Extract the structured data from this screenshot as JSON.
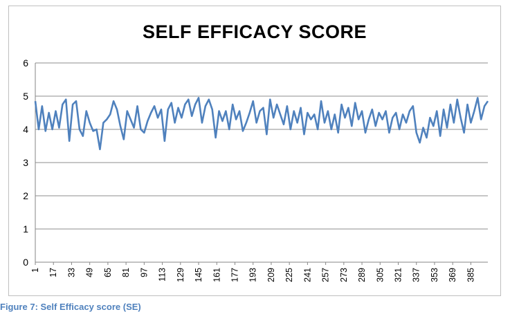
{
  "chart_data": {
    "type": "line",
    "title": "SELF EFFICACY SCORE",
    "ylim": [
      0,
      6
    ],
    "yticks": [
      0,
      1,
      2,
      3,
      4,
      5,
      6
    ],
    "x_range": [
      1,
      400
    ],
    "xticks": [
      1,
      17,
      33,
      49,
      65,
      81,
      97,
      113,
      129,
      145,
      161,
      177,
      193,
      209,
      225,
      241,
      257,
      273,
      289,
      305,
      321,
      337,
      353,
      369,
      385
    ],
    "grid": "horizontal",
    "legend": "none",
    "series_color": "#4f81bd",
    "series": [
      {
        "anchors": [
          [
            1,
            4.85
          ],
          [
            4,
            4.0
          ],
          [
            7,
            4.7
          ],
          [
            10,
            3.95
          ],
          [
            13,
            4.5
          ],
          [
            16,
            4.0
          ],
          [
            19,
            4.55
          ],
          [
            22,
            4.05
          ],
          [
            25,
            4.75
          ],
          [
            28,
            4.9
          ],
          [
            31,
            3.65
          ],
          [
            34,
            4.75
          ],
          [
            37,
            4.85
          ],
          [
            40,
            4.0
          ],
          [
            43,
            3.8
          ],
          [
            46,
            4.55
          ],
          [
            49,
            4.2
          ],
          [
            52,
            3.95
          ],
          [
            55,
            4.0
          ],
          [
            58,
            3.4
          ],
          [
            61,
            4.2
          ],
          [
            64,
            4.3
          ],
          [
            67,
            4.45
          ],
          [
            70,
            4.85
          ],
          [
            73,
            4.6
          ],
          [
            76,
            4.1
          ],
          [
            79,
            3.7
          ],
          [
            82,
            4.55
          ],
          [
            85,
            4.3
          ],
          [
            88,
            4.05
          ],
          [
            91,
            4.7
          ],
          [
            94,
            4.0
          ],
          [
            97,
            3.9
          ],
          [
            100,
            4.25
          ],
          [
            103,
            4.5
          ],
          [
            106,
            4.7
          ],
          [
            109,
            4.35
          ],
          [
            112,
            4.6
          ],
          [
            115,
            3.65
          ],
          [
            118,
            4.6
          ],
          [
            121,
            4.8
          ],
          [
            124,
            4.2
          ],
          [
            127,
            4.65
          ],
          [
            130,
            4.35
          ],
          [
            133,
            4.75
          ],
          [
            136,
            4.9
          ],
          [
            139,
            4.4
          ],
          [
            142,
            4.75
          ],
          [
            145,
            4.95
          ],
          [
            148,
            4.2
          ],
          [
            151,
            4.7
          ],
          [
            154,
            4.9
          ],
          [
            157,
            4.6
          ],
          [
            160,
            3.75
          ],
          [
            163,
            4.55
          ],
          [
            166,
            4.25
          ],
          [
            169,
            4.55
          ],
          [
            172,
            4.0
          ],
          [
            175,
            4.75
          ],
          [
            178,
            4.3
          ],
          [
            181,
            4.55
          ],
          [
            184,
            3.95
          ],
          [
            187,
            4.2
          ],
          [
            190,
            4.5
          ],
          [
            193,
            4.85
          ],
          [
            196,
            4.2
          ],
          [
            199,
            4.55
          ],
          [
            202,
            4.65
          ],
          [
            205,
            3.85
          ],
          [
            208,
            4.9
          ],
          [
            211,
            4.35
          ],
          [
            214,
            4.75
          ],
          [
            217,
            4.45
          ],
          [
            220,
            4.15
          ],
          [
            223,
            4.7
          ],
          [
            226,
            4.0
          ],
          [
            229,
            4.55
          ],
          [
            232,
            4.2
          ],
          [
            235,
            4.65
          ],
          [
            238,
            3.85
          ],
          [
            241,
            4.5
          ],
          [
            244,
            4.3
          ],
          [
            247,
            4.45
          ],
          [
            250,
            4.0
          ],
          [
            253,
            4.85
          ],
          [
            256,
            4.2
          ],
          [
            259,
            4.55
          ],
          [
            262,
            4.0
          ],
          [
            265,
            4.45
          ],
          [
            268,
            3.9
          ],
          [
            271,
            4.75
          ],
          [
            274,
            4.35
          ],
          [
            277,
            4.65
          ],
          [
            280,
            4.1
          ],
          [
            283,
            4.8
          ],
          [
            286,
            4.3
          ],
          [
            289,
            4.55
          ],
          [
            292,
            3.9
          ],
          [
            295,
            4.3
          ],
          [
            298,
            4.6
          ],
          [
            301,
            4.1
          ],
          [
            304,
            4.5
          ],
          [
            307,
            4.3
          ],
          [
            310,
            4.55
          ],
          [
            313,
            3.9
          ],
          [
            316,
            4.35
          ],
          [
            319,
            4.5
          ],
          [
            322,
            4.0
          ],
          [
            325,
            4.45
          ],
          [
            328,
            4.2
          ],
          [
            331,
            4.55
          ],
          [
            334,
            4.7
          ],
          [
            337,
            3.9
          ],
          [
            340,
            3.6
          ],
          [
            343,
            4.05
          ],
          [
            346,
            3.75
          ],
          [
            349,
            4.35
          ],
          [
            352,
            4.1
          ],
          [
            355,
            4.55
          ],
          [
            358,
            3.8
          ],
          [
            361,
            4.6
          ],
          [
            364,
            4.05
          ],
          [
            367,
            4.75
          ],
          [
            370,
            4.2
          ],
          [
            373,
            4.9
          ],
          [
            376,
            4.35
          ],
          [
            379,
            3.9
          ],
          [
            382,
            4.75
          ],
          [
            385,
            4.2
          ],
          [
            388,
            4.55
          ],
          [
            391,
            4.95
          ],
          [
            394,
            4.3
          ],
          [
            397,
            4.7
          ],
          [
            400,
            4.85
          ]
        ]
      }
    ]
  },
  "caption": {
    "text": "Figure 7: Self Efficacy score (SE)"
  }
}
